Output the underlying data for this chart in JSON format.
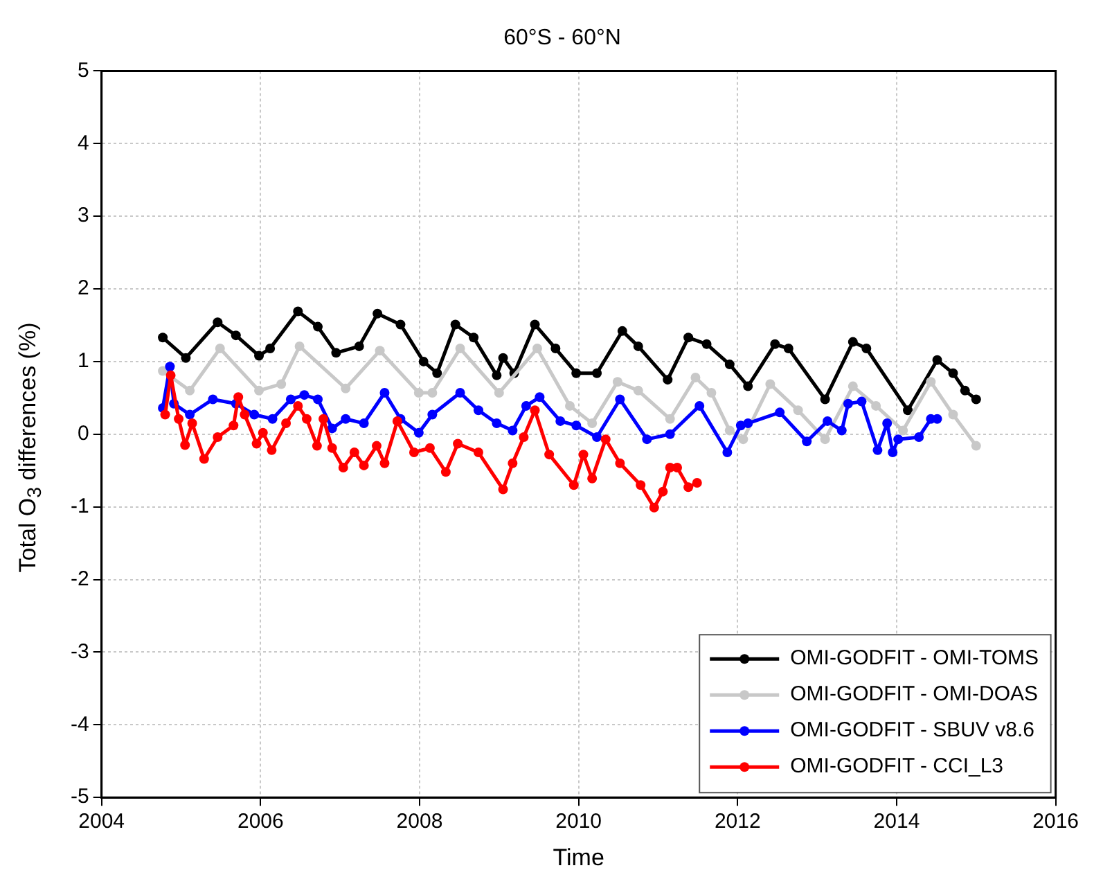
{
  "chart_data": {
    "type": "line",
    "title": "60°S - 60°N",
    "xlabel": "Time",
    "ylabel": "Total O$_{3}$ differences (%)",
    "xlim": [
      2004,
      2016
    ],
    "xticks": [
      2004,
      2006,
      2008,
      2010,
      2012,
      2014,
      2016
    ],
    "ylim": [
      -5,
      5
    ],
    "yticks": [
      -5,
      -4,
      -3,
      -2,
      -1,
      0,
      1,
      2,
      3,
      4,
      5
    ],
    "grid": true,
    "legend": "bottom right",
    "marker": "circle",
    "line_style": "solid",
    "series": [
      {
        "name": "OMI-GODFIT - OMI-TOMS",
        "color": "#000000",
        "x": [
          2004.77,
          2005.06,
          2005.46,
          2005.69,
          2005.98,
          2006.12,
          2006.47,
          2006.72,
          2006.95,
          2007.24,
          2007.47,
          2007.76,
          2008.05,
          2008.22,
          2008.45,
          2008.68,
          2008.97,
          2009.05,
          2009.19,
          2009.45,
          2009.71,
          2009.97,
          2010.23,
          2010.55,
          2010.75,
          2011.12,
          2011.38,
          2011.61,
          2011.9,
          2012.13,
          2012.47,
          2012.64,
          2013.1,
          2013.45,
          2013.62,
          2014.14,
          2014.51,
          2014.71,
          2014.86,
          2015.0
        ],
        "values": [
          1.33,
          1.05,
          1.54,
          1.36,
          1.08,
          1.18,
          1.69,
          1.48,
          1.12,
          1.21,
          1.66,
          1.51,
          1.0,
          0.84,
          1.51,
          1.33,
          0.81,
          1.05,
          0.84,
          1.51,
          1.18,
          0.84,
          0.84,
          1.42,
          1.21,
          0.75,
          1.33,
          1.24,
          0.96,
          0.66,
          1.24,
          1.18,
          0.48,
          1.27,
          1.18,
          0.33,
          1.02,
          0.84,
          0.6,
          0.48
        ]
      },
      {
        "name": "OMI-GODFIT - OMI-DOAS",
        "color": "#c8c8c8",
        "x": [
          2004.77,
          2005.11,
          2005.49,
          2005.98,
          2006.26,
          2006.49,
          2007.07,
          2007.5,
          2007.99,
          2008.16,
          2008.51,
          2009.0,
          2009.48,
          2009.89,
          2010.17,
          2010.49,
          2010.75,
          2011.15,
          2011.47,
          2011.67,
          2011.9,
          2012.07,
          2012.41,
          2012.76,
          2013.1,
          2013.45,
          2013.74,
          2014.08,
          2014.43,
          2014.71,
          2015.0
        ],
        "values": [
          0.87,
          0.6,
          1.18,
          0.6,
          0.69,
          1.21,
          0.63,
          1.15,
          0.57,
          0.57,
          1.18,
          0.57,
          1.18,
          0.39,
          0.15,
          0.72,
          0.6,
          0.21,
          0.78,
          0.57,
          0.05,
          -0.07,
          0.69,
          0.33,
          -0.07,
          0.66,
          0.39,
          0.05,
          0.72,
          0.27,
          -0.16
        ]
      },
      {
        "name": "OMI-GODFIT - SBUV v8.6",
        "color": "#0000ff",
        "x": [
          2004.77,
          2004.86,
          2004.91,
          2005.11,
          2005.4,
          2005.69,
          2005.92,
          2006.15,
          2006.38,
          2006.55,
          2006.72,
          2006.9,
          2007.07,
          2007.3,
          2007.56,
          2007.76,
          2007.99,
          2008.16,
          2008.51,
          2008.74,
          2008.97,
          2009.17,
          2009.34,
          2009.51,
          2009.77,
          2009.97,
          2010.23,
          2010.52,
          2010.86,
          2011.15,
          2011.52,
          2011.87,
          2012.04,
          2012.13,
          2012.53,
          2012.87,
          2013.13,
          2013.31,
          2013.39,
          2013.56,
          2013.76,
          2013.88,
          2013.95,
          2014.02,
          2014.28,
          2014.43,
          2014.51
        ],
        "values": [
          0.36,
          0.93,
          0.42,
          0.27,
          0.48,
          0.42,
          0.27,
          0.21,
          0.48,
          0.54,
          0.48,
          0.08,
          0.21,
          0.15,
          0.57,
          0.21,
          0.02,
          0.27,
          0.57,
          0.33,
          0.15,
          0.05,
          0.39,
          0.51,
          0.18,
          0.12,
          -0.04,
          0.48,
          -0.07,
          0.0,
          0.39,
          -0.25,
          0.12,
          0.15,
          0.3,
          -0.1,
          0.18,
          0.05,
          0.42,
          0.45,
          -0.22,
          0.15,
          -0.25,
          -0.07,
          -0.04,
          0.21,
          0.21
        ]
      },
      {
        "name": "OMI-GODFIT - CCI_L3",
        "color": "#ff0000",
        "x": [
          2004.8,
          2004.87,
          2004.97,
          2005.05,
          2005.14,
          2005.29,
          2005.46,
          2005.66,
          2005.72,
          2005.8,
          2005.95,
          2006.03,
          2006.14,
          2006.32,
          2006.47,
          2006.58,
          2006.71,
          2006.79,
          2006.9,
          2007.04,
          2007.18,
          2007.3,
          2007.46,
          2007.56,
          2007.72,
          2007.93,
          2008.13,
          2008.33,
          2008.48,
          2008.74,
          2009.05,
          2009.17,
          2009.31,
          2009.45,
          2009.63,
          2009.94,
          2010.06,
          2010.17,
          2010.34,
          2010.52,
          2010.78,
          2010.95,
          2011.06,
          2011.15,
          2011.24,
          2011.38,
          2011.49
        ],
        "values": [
          0.27,
          0.81,
          0.21,
          -0.15,
          0.15,
          -0.34,
          -0.04,
          0.12,
          0.51,
          0.27,
          -0.13,
          0.02,
          -0.22,
          0.15,
          0.39,
          0.21,
          -0.16,
          0.21,
          -0.19,
          -0.46,
          -0.25,
          -0.43,
          -0.16,
          -0.4,
          0.18,
          -0.25,
          -0.19,
          -0.52,
          -0.13,
          -0.25,
          -0.76,
          -0.4,
          -0.04,
          0.33,
          -0.28,
          -0.7,
          -0.28,
          -0.61,
          -0.07,
          -0.4,
          -0.7,
          -1.01,
          -0.79,
          -0.46,
          -0.46,
          -0.73,
          -0.67
        ]
      }
    ]
  }
}
